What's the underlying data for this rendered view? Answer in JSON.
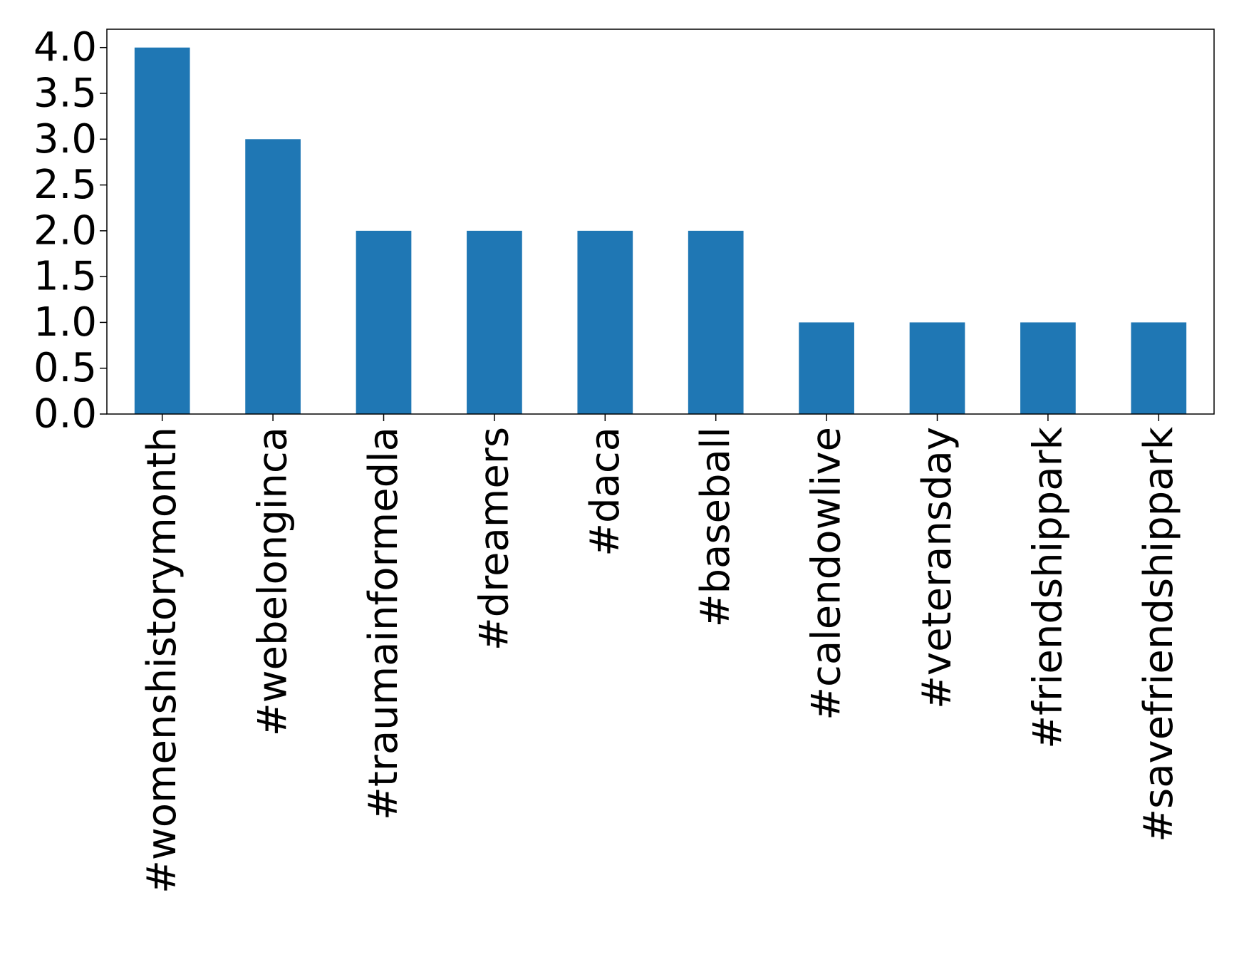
{
  "chart_data": {
    "type": "bar",
    "title": "",
    "xlabel": "",
    "ylabel": "",
    "categories": [
      "#womenshistorymonth",
      "#webelonginca",
      "#traumainformedla",
      "#dreamers",
      "#daca",
      "#baseball",
      "#calendowlive",
      "#veteransday",
      "#friendshippark",
      "#savefriendshippark"
    ],
    "values": [
      4,
      3,
      2,
      2,
      2,
      2,
      1,
      1,
      1,
      1
    ],
    "ylim": [
      0,
      4.2
    ],
    "yticks": [
      0.0,
      0.5,
      1.0,
      1.5,
      2.0,
      2.5,
      3.0,
      3.5,
      4.0
    ],
    "ytick_labels": [
      "0.0",
      "0.5",
      "1.0",
      "1.5",
      "2.0",
      "2.5",
      "3.0",
      "3.5",
      "4.0"
    ],
    "bar_color": "#1f77b4",
    "grid": false,
    "legend": "none"
  }
}
